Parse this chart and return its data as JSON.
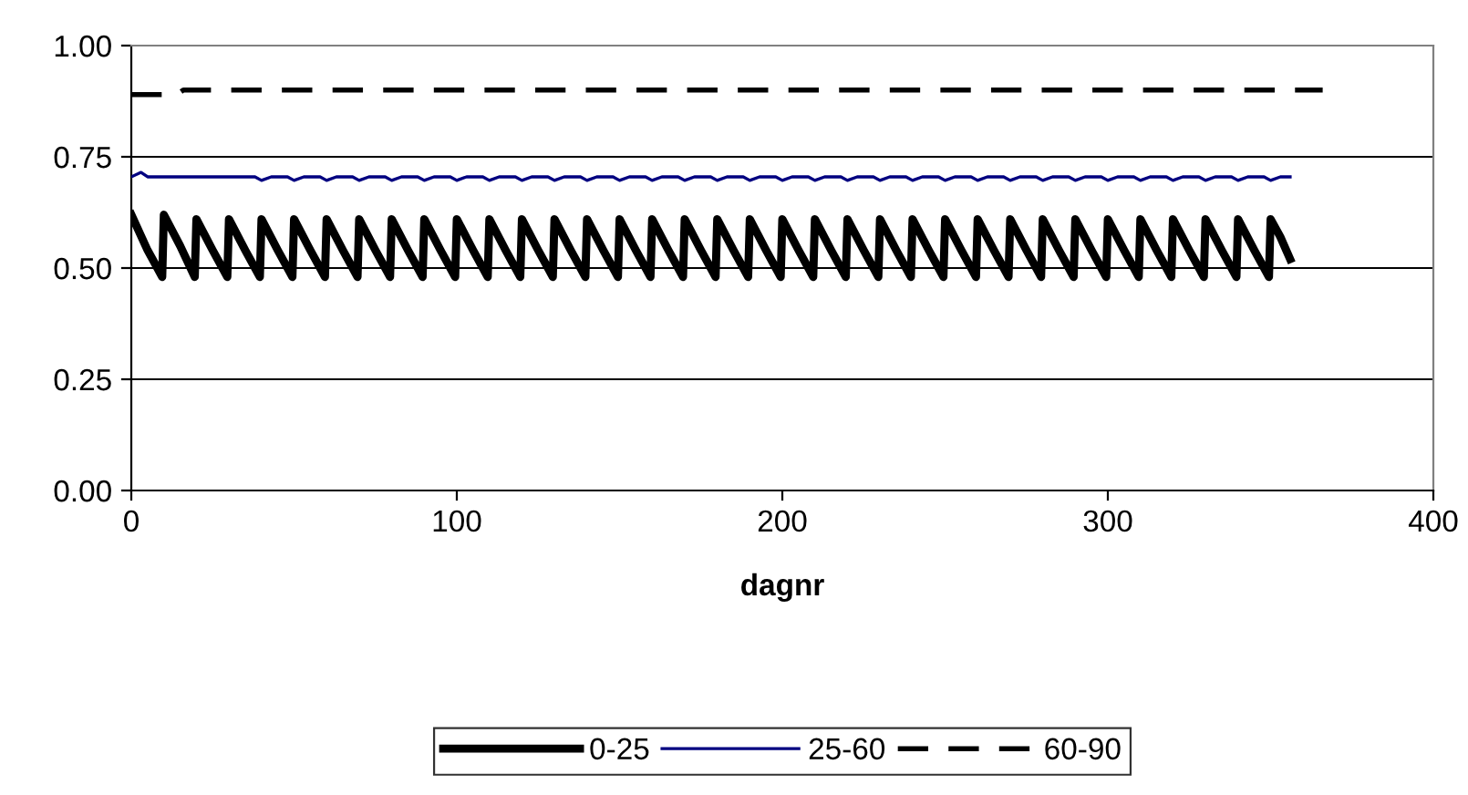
{
  "chart_data": {
    "type": "line",
    "xlabel": "dagnr",
    "xlim": [
      0,
      400
    ],
    "xticks": [
      0,
      100,
      200,
      300,
      400
    ],
    "ylim": [
      0,
      1
    ],
    "yticks": [
      {
        "value": 0,
        "label": "0.00"
      },
      {
        "value": 0.25,
        "label": "0.25"
      },
      {
        "value": 0.5,
        "label": "0.50"
      },
      {
        "value": 0.75,
        "label": "0.75"
      },
      {
        "value": 1,
        "label": "1.00"
      }
    ],
    "grid": "y",
    "legend": "bottom",
    "marker": "none",
    "series": [
      {
        "name": "0-25",
        "color": "#000000",
        "line_style": "solid",
        "x": [
          0,
          5,
          9.5,
          10,
          15,
          19.5,
          20,
          25,
          29.5,
          30,
          35,
          39.5,
          40,
          45,
          49.5,
          50,
          55,
          59.5,
          60,
          65,
          69.5,
          70,
          75,
          79.5,
          80,
          85,
          89.5,
          90,
          95,
          99.5,
          100,
          105,
          109.5,
          110,
          115,
          119.5,
          120,
          125,
          129.5,
          130,
          135,
          139.5,
          140,
          145,
          149.5,
          150,
          155,
          159.5,
          160,
          165,
          169.5,
          170,
          175,
          179.5,
          180,
          185,
          189.5,
          190,
          195,
          199.5,
          200,
          205,
          209.5,
          210,
          215,
          219.5,
          220,
          225,
          229.5,
          230,
          235,
          239.5,
          240,
          245,
          249.5,
          250,
          255,
          259.5,
          260,
          265,
          269.5,
          270,
          275,
          279.5,
          280,
          285,
          289.5,
          290,
          295,
          299.5,
          300,
          305,
          309.5,
          310,
          315,
          319.5,
          320,
          325,
          329.5,
          330,
          335,
          339.5,
          340,
          345,
          349.5,
          350,
          353,
          356
        ],
        "values": [
          0.62,
          0.54,
          0.48,
          0.62,
          0.55,
          0.48,
          0.61,
          0.54,
          0.48,
          0.61,
          0.54,
          0.48,
          0.61,
          0.54,
          0.48,
          0.61,
          0.54,
          0.48,
          0.61,
          0.54,
          0.48,
          0.61,
          0.54,
          0.48,
          0.61,
          0.54,
          0.48,
          0.61,
          0.54,
          0.48,
          0.61,
          0.54,
          0.48,
          0.61,
          0.54,
          0.48,
          0.61,
          0.54,
          0.48,
          0.61,
          0.54,
          0.48,
          0.61,
          0.54,
          0.48,
          0.61,
          0.54,
          0.48,
          0.61,
          0.54,
          0.48,
          0.61,
          0.54,
          0.48,
          0.61,
          0.54,
          0.48,
          0.61,
          0.54,
          0.48,
          0.61,
          0.54,
          0.48,
          0.61,
          0.54,
          0.48,
          0.61,
          0.54,
          0.48,
          0.61,
          0.54,
          0.48,
          0.61,
          0.54,
          0.48,
          0.61,
          0.54,
          0.48,
          0.61,
          0.54,
          0.48,
          0.61,
          0.54,
          0.48,
          0.61,
          0.54,
          0.48,
          0.61,
          0.54,
          0.48,
          0.61,
          0.54,
          0.48,
          0.61,
          0.54,
          0.48,
          0.61,
          0.54,
          0.48,
          0.61,
          0.54,
          0.48,
          0.61,
          0.54,
          0.48,
          0.61,
          0.57,
          0.52
        ]
      },
      {
        "name": "25-60",
        "color": "#000080",
        "line_style": "solid",
        "x": [
          0,
          3,
          5,
          10,
          38,
          40,
          43,
          48,
          50,
          53,
          58,
          60,
          63,
          68,
          70,
          73,
          78,
          80,
          83,
          88,
          90,
          93,
          98,
          100,
          103,
          108,
          110,
          113,
          118,
          120,
          123,
          128,
          130,
          133,
          138,
          140,
          143,
          148,
          150,
          153,
          158,
          160,
          163,
          168,
          170,
          173,
          178,
          180,
          183,
          188,
          190,
          193,
          198,
          200,
          203,
          208,
          210,
          213,
          218,
          220,
          223,
          228,
          230,
          233,
          238,
          240,
          243,
          248,
          250,
          253,
          258,
          260,
          263,
          268,
          270,
          273,
          278,
          280,
          283,
          288,
          290,
          293,
          298,
          300,
          303,
          308,
          310,
          313,
          318,
          320,
          323,
          328,
          330,
          333,
          338,
          340,
          343,
          348,
          350,
          353,
          356
        ],
        "values": [
          0.705,
          0.715,
          0.705,
          0.705,
          0.705,
          0.697,
          0.705,
          0.705,
          0.697,
          0.705,
          0.705,
          0.697,
          0.705,
          0.705,
          0.697,
          0.705,
          0.705,
          0.697,
          0.705,
          0.705,
          0.697,
          0.705,
          0.705,
          0.697,
          0.705,
          0.705,
          0.697,
          0.705,
          0.705,
          0.697,
          0.705,
          0.705,
          0.697,
          0.705,
          0.705,
          0.697,
          0.705,
          0.705,
          0.697,
          0.705,
          0.705,
          0.697,
          0.705,
          0.705,
          0.697,
          0.705,
          0.705,
          0.697,
          0.705,
          0.705,
          0.697,
          0.705,
          0.705,
          0.697,
          0.705,
          0.705,
          0.697,
          0.705,
          0.705,
          0.697,
          0.705,
          0.705,
          0.697,
          0.705,
          0.705,
          0.697,
          0.705,
          0.705,
          0.697,
          0.705,
          0.705,
          0.697,
          0.705,
          0.705,
          0.697,
          0.705,
          0.705,
          0.697,
          0.705,
          0.705,
          0.697,
          0.705,
          0.705,
          0.697,
          0.705,
          0.705,
          0.697,
          0.705,
          0.705,
          0.697,
          0.705,
          0.705,
          0.697,
          0.705,
          0.705,
          0.697,
          0.705,
          0.705,
          0.697,
          0.705,
          0.705
        ]
      },
      {
        "name": "60-90",
        "color": "#000000",
        "line_style": "dashed",
        "x": [
          0,
          14,
          16,
          366
        ],
        "values": [
          0.89,
          0.89,
          0.9,
          0.9
        ]
      }
    ]
  }
}
